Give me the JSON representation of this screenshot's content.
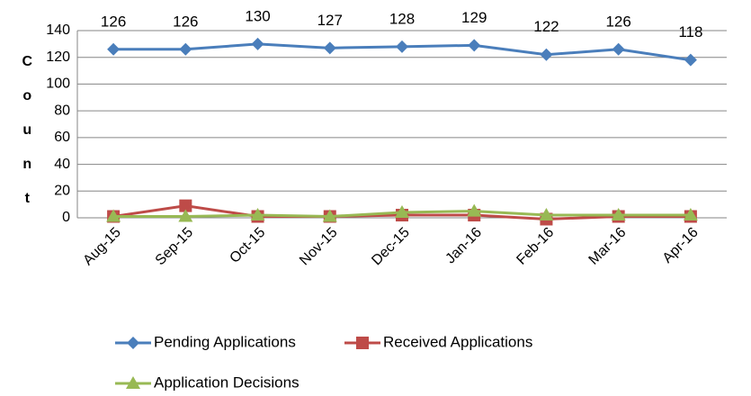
{
  "chart_data": {
    "type": "line",
    "categories": [
      "Aug-15",
      "Sep-15",
      "Oct-15",
      "Nov-15",
      "Dec-15",
      "Jan-16",
      "Feb-16",
      "Mar-16",
      "Apr-16"
    ],
    "y_label": "Count",
    "ylim": [
      0,
      140
    ],
    "yticks": [
      0,
      20,
      40,
      60,
      80,
      100,
      120,
      140
    ],
    "grid": true,
    "legend": "bottom",
    "series": [
      {
        "name": "Pending Applications",
        "color": "#4a7ebb",
        "marker": "diamond",
        "values": [
          126,
          126,
          130,
          127,
          128,
          129,
          122,
          126,
          118
        ]
      },
      {
        "name": "Received Applications",
        "color": "#be4b48",
        "marker": "square",
        "values": [
          1,
          9,
          1,
          1,
          2,
          2,
          -1,
          1,
          1
        ]
      },
      {
        "name": "Application Decisions",
        "color": "#98b954",
        "marker": "triangle",
        "values": [
          1,
          1,
          2,
          1,
          4,
          5,
          2,
          2,
          2
        ]
      }
    ]
  }
}
